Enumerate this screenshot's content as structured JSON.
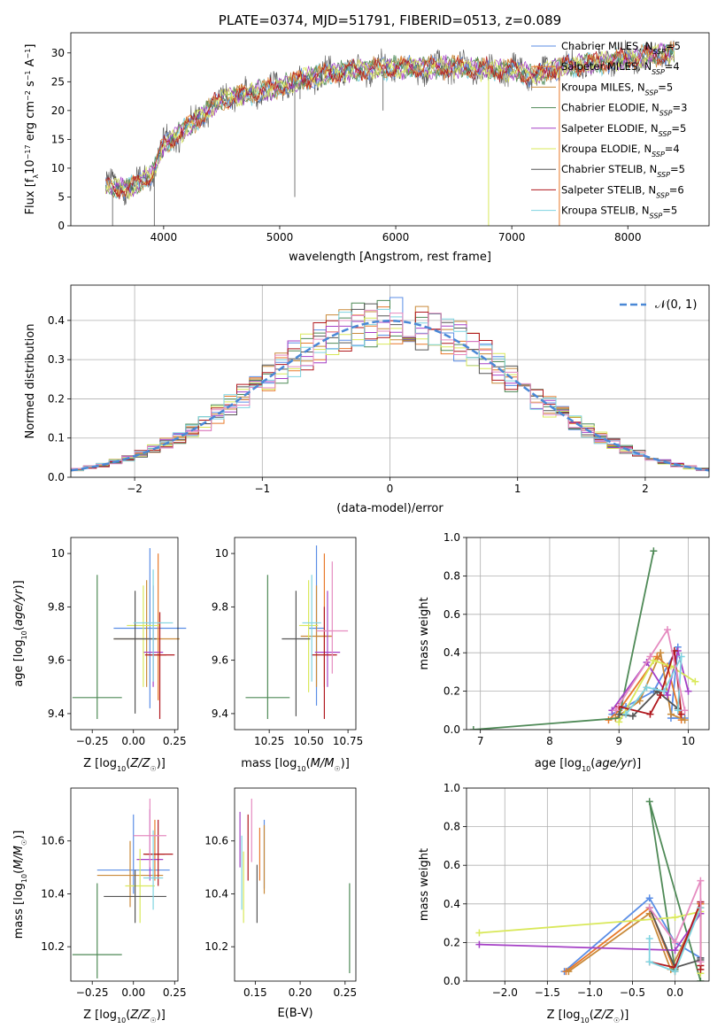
{
  "colors": [
    "#5b8ee6",
    "#e8792a",
    "#c98a3a",
    "#4f8a57",
    "#a540c6",
    "#d9e85a",
    "#555555",
    "#b0181e",
    "#7fd3e0",
    "#e58bc0"
  ],
  "chart_data": [
    {
      "type": "line",
      "title": "PLATE=0374, MJD=51791, FIBERID=0513, z=0.089",
      "xlabel": "wavelength [Angstrom, rest frame]",
      "ylabel": "Flux [f_λ 10^-17 erg cm^-2 s^-1 A^-1]",
      "xlim": [
        3200,
        8700
      ],
      "ylim": [
        0,
        33.5
      ],
      "xticks": [
        4000,
        5000,
        6000,
        7000,
        8000
      ],
      "yticks": [
        0,
        5,
        10,
        15,
        20,
        25,
        30
      ],
      "grid": false,
      "legend": "top-right",
      "continuum": {
        "x": [
          3500,
          3700,
          3900,
          4000,
          4200,
          4500,
          5000,
          5300,
          5600,
          6000,
          6500,
          7000,
          7200,
          7400,
          8000,
          8400
        ],
        "y": [
          7,
          6.5,
          9,
          14,
          17,
          22,
          24,
          26,
          27,
          27.5,
          27.5,
          27,
          26,
          27.5,
          29,
          30
        ]
      },
      "series": [
        {
          "name": "Chabrier MILES, N_SSP=5"
        },
        {
          "name": "Salpeter MILES, N_SSP=4"
        },
        {
          "name": "Kroupa MILES, N_SSP=5"
        },
        {
          "name": "Chabrier ELODIE, N_SSP=3"
        },
        {
          "name": "Salpeter ELODIE, N_SSP=5"
        },
        {
          "name": "Kroupa ELODIE, N_SSP=4"
        },
        {
          "name": "Chabrier STELIB, N_SSP=5"
        },
        {
          "name": "Salpeter STELIB, N_SSP=6"
        },
        {
          "name": "Kroupa STELIB, N_SSP=5"
        }
      ]
    },
    {
      "type": "histogram",
      "xlabel": "(data-model)/error",
      "ylabel": "Normed distribution",
      "xlim": [
        -2.5,
        2.5
      ],
      "ylim": [
        0,
        0.49
      ],
      "xticks": [
        -2,
        -1,
        0,
        1,
        2
      ],
      "yticks": [
        0.0,
        0.1,
        0.2,
        0.3,
        0.4
      ],
      "grid": true,
      "legend": "top-right",
      "legend_label": "𝒩(0, 1)",
      "bin_width": 0.1
    },
    {
      "type": "errorbar",
      "xlabel": "Z [log10(Z/Z☉)]",
      "ylabel": "age [log10(age/yr)]",
      "xlim": [
        -0.38,
        0.27
      ],
      "ylim": [
        9.34,
        10.06
      ],
      "xticks": [
        -0.25,
        0.0,
        0.25
      ],
      "xticklabels": [
        "−0.25",
        "0.00",
        "0.25"
      ],
      "yticks": [
        9.4,
        9.6,
        9.8,
        10.0
      ],
      "points": [
        {
          "x": 0.1,
          "y": 9.72,
          "xerr": 0.22,
          "ylo": 9.42,
          "yhi": 10.02
        },
        {
          "x": 0.15,
          "y": 9.62,
          "xerr": 0.05,
          "ylo": 9.45,
          "yhi": 10.0
        },
        {
          "x": 0.08,
          "y": 9.68,
          "xerr": 0.2,
          "ylo": 9.5,
          "yhi": 9.9
        },
        {
          "x": -0.22,
          "y": 9.46,
          "xerr": 0.15,
          "ylo": 9.38,
          "yhi": 9.92
        },
        {
          "x": 0.12,
          "y": 9.63,
          "xerr": 0.06,
          "ylo": 9.5,
          "yhi": 9.88
        },
        {
          "x": 0.06,
          "y": 9.73,
          "xerr": 0.1,
          "ylo": 9.5,
          "yhi": 9.88
        },
        {
          "x": 0.01,
          "y": 9.68,
          "xerr": 0.13,
          "ylo": 9.4,
          "yhi": 9.86
        },
        {
          "x": 0.16,
          "y": 9.62,
          "xerr": 0.09,
          "ylo": 9.38,
          "yhi": 9.78
        },
        {
          "x": 0.12,
          "y": 9.74,
          "xerr": 0.12,
          "ylo": 9.52,
          "yhi": 9.94
        }
      ]
    },
    {
      "type": "errorbar",
      "xlabel": "mass [log10(M/M☉)]",
      "ylabel": "",
      "xlim": [
        10.03,
        10.8
      ],
      "ylim": [
        9.34,
        10.06
      ],
      "xticks": [
        10.25,
        10.5,
        10.75
      ],
      "xticklabels": [
        "10.25",
        "10.50",
        "10.75"
      ],
      "yticks": [
        9.4,
        9.6,
        9.8,
        10.0
      ],
      "points": [
        {
          "x": 10.55,
          "y": 9.72,
          "xerr": 0.05,
          "ylo": 9.43,
          "yhi": 10.03
        },
        {
          "x": 10.6,
          "y": 9.69,
          "xerr": 0.05,
          "ylo": 9.5,
          "yhi": 10.0
        },
        {
          "x": 10.55,
          "y": 9.69,
          "xerr": 0.1,
          "ylo": 9.5,
          "yhi": 9.88
        },
        {
          "x": 10.24,
          "y": 9.46,
          "xerr": 0.14,
          "ylo": 9.38,
          "yhi": 9.92
        },
        {
          "x": 10.62,
          "y": 9.63,
          "xerr": 0.08,
          "ylo": 9.5,
          "yhi": 9.86
        },
        {
          "x": 10.5,
          "y": 9.73,
          "xerr": 0.06,
          "ylo": 9.48,
          "yhi": 9.9
        },
        {
          "x": 10.42,
          "y": 9.68,
          "xerr": 0.09,
          "ylo": 9.39,
          "yhi": 9.86
        },
        {
          "x": 10.6,
          "y": 9.62,
          "xerr": 0.08,
          "ylo": 9.38,
          "yhi": 9.8
        },
        {
          "x": 10.52,
          "y": 9.74,
          "xerr": 0.06,
          "ylo": 9.52,
          "yhi": 9.92
        },
        {
          "x": 10.65,
          "y": 9.71,
          "xerr": 0.1,
          "ylo": 9.55,
          "yhi": 9.97
        }
      ]
    },
    {
      "type": "line",
      "xlabel": "age [log10(age/yr)]",
      "ylabel": "mass weight",
      "xlim": [
        6.8,
        10.3
      ],
      "ylim": [
        0,
        1.0
      ],
      "xticks": [
        7,
        8,
        9,
        10
      ],
      "yticks": [
        0.0,
        0.2,
        0.4,
        0.6,
        0.8,
        1.0
      ],
      "grid": true,
      "series": [
        {
          "x": [
            8.9,
            9.1,
            9.5,
            9.85,
            9.75,
            9.95
          ],
          "y": [
            0.08,
            0.12,
            0.2,
            0.43,
            0.06,
            0.06
          ]
        },
        {
          "x": [
            8.85,
            9.0,
            9.55,
            9.7,
            9.9
          ],
          "y": [
            0.05,
            0.1,
            0.38,
            0.33,
            0.05
          ]
        },
        {
          "x": [
            8.95,
            9.3,
            9.6,
            9.75,
            9.95
          ],
          "y": [
            0.06,
            0.15,
            0.4,
            0.08,
            0.05
          ]
        },
        {
          "x": [
            6.9,
            9.0,
            9.5
          ],
          "y": [
            0.0,
            0.06,
            0.93
          ]
        },
        {
          "x": [
            8.9,
            9.4,
            9.7,
            9.85,
            10.0
          ],
          "y": [
            0.1,
            0.35,
            0.18,
            0.41,
            0.2
          ]
        },
        {
          "x": [
            9.0,
            9.5,
            9.75,
            10.1
          ],
          "y": [
            0.04,
            0.36,
            0.33,
            0.25
          ]
        },
        {
          "x": [
            9.0,
            9.2,
            9.55,
            9.85
          ],
          "y": [
            0.08,
            0.07,
            0.2,
            0.11
          ]
        },
        {
          "x": [
            9.0,
            9.45,
            9.6,
            9.8,
            9.9
          ],
          "y": [
            0.12,
            0.08,
            0.18,
            0.41,
            0.08
          ]
        },
        {
          "x": [
            9.1,
            9.4,
            9.65,
            9.9,
            9.85
          ],
          "y": [
            0.08,
            0.22,
            0.2,
            0.38,
            0.1
          ]
        },
        {
          "x": [
            8.95,
            9.45,
            9.7,
            9.95
          ],
          "y": [
            0.1,
            0.38,
            0.52,
            0.1
          ]
        }
      ]
    },
    {
      "type": "errorbar",
      "xlabel": "Z [log10(Z/Z☉)]",
      "ylabel": "mass [log10(M/M☉)]",
      "xlim": [
        -0.38,
        0.27
      ],
      "ylim": [
        10.07,
        10.8
      ],
      "xticks": [
        -0.25,
        0.0,
        0.25
      ],
      "xticklabels": [
        "−0.25",
        "0.00",
        "0.25"
      ],
      "yticks": [
        10.2,
        10.4,
        10.6
      ],
      "points": [
        {
          "x": 0.0,
          "y": 10.49,
          "xerr": 0.22,
          "ylo": 10.4,
          "yhi": 10.7
        },
        {
          "x": 0.13,
          "y": 10.55,
          "xerr": 0.06,
          "ylo": 10.45,
          "yhi": 10.68
        },
        {
          "x": -0.02,
          "y": 10.47,
          "xerr": 0.2,
          "ylo": 10.35,
          "yhi": 10.6
        },
        {
          "x": -0.22,
          "y": 10.17,
          "xerr": 0.15,
          "ylo": 10.08,
          "yhi": 10.44
        },
        {
          "x": 0.1,
          "y": 10.53,
          "xerr": 0.08,
          "ylo": 10.45,
          "yhi": 10.72
        },
        {
          "x": 0.04,
          "y": 10.43,
          "xerr": 0.09,
          "ylo": 10.29,
          "yhi": 10.57
        },
        {
          "x": 0.01,
          "y": 10.39,
          "xerr": 0.19,
          "ylo": 10.29,
          "yhi": 10.49
        },
        {
          "x": 0.15,
          "y": 10.55,
          "xerr": 0.09,
          "ylo": 10.43,
          "yhi": 10.68
        },
        {
          "x": 0.12,
          "y": 10.46,
          "xerr": 0.06,
          "ylo": 10.34,
          "yhi": 10.64
        },
        {
          "x": 0.1,
          "y": 10.62,
          "xerr": 0.1,
          "ylo": 10.5,
          "yhi": 10.76
        }
      ]
    },
    {
      "type": "errorbar",
      "xlabel": "E(B-V)",
      "ylabel": "",
      "xlim": [
        0.127,
        0.262
      ],
      "ylim": [
        10.07,
        10.8
      ],
      "xticks": [
        0.15,
        0.2,
        0.25
      ],
      "xticklabels": [
        "0.15",
        "0.20",
        "0.25"
      ],
      "yticks": [
        10.2,
        10.4,
        10.6
      ],
      "points": [
        {
          "x": 0.16,
          "y": 10.55,
          "ylo": 10.42,
          "yhi": 10.68
        },
        {
          "x": 0.155,
          "y": 10.55,
          "ylo": 10.45,
          "yhi": 10.65
        },
        {
          "x": 0.16,
          "y": 10.5,
          "ylo": 10.4,
          "yhi": 10.66
        },
        {
          "x": 0.255,
          "y": 10.25,
          "ylo": 10.1,
          "yhi": 10.44
        },
        {
          "x": 0.133,
          "y": 10.6,
          "ylo": 10.5,
          "yhi": 10.71
        },
        {
          "x": 0.137,
          "y": 10.4,
          "ylo": 10.29,
          "yhi": 10.56
        },
        {
          "x": 0.152,
          "y": 10.4,
          "ylo": 10.29,
          "yhi": 10.51
        },
        {
          "x": 0.142,
          "y": 10.55,
          "ylo": 10.45,
          "yhi": 10.7
        },
        {
          "x": 0.135,
          "y": 10.45,
          "ylo": 10.34,
          "yhi": 10.62
        },
        {
          "x": 0.146,
          "y": 10.65,
          "ylo": 10.52,
          "yhi": 10.76
        }
      ]
    },
    {
      "type": "line",
      "xlabel": "Z [log10(Z/Z☉)]",
      "ylabel": "mass weight",
      "xlim": [
        -2.45,
        0.4
      ],
      "ylim": [
        0,
        1.0
      ],
      "xticks": [
        -2.0,
        -1.5,
        -1.0,
        -0.5,
        0.0
      ],
      "xticklabels": [
        "−2.0",
        "−1.5",
        "−1.0",
        "−0.5",
        "0.0"
      ],
      "yticks": [
        0.0,
        0.2,
        0.4,
        0.6,
        0.8,
        1.0
      ],
      "grid": true,
      "series": [
        {
          "x": [
            -1.3,
            -0.3,
            0.0,
            0.3,
            0.3
          ],
          "y": [
            0.05,
            0.43,
            0.2,
            0.12,
            0.1
          ]
        },
        {
          "x": [
            -1.28,
            -0.3,
            0.0,
            0.3
          ],
          "y": [
            0.05,
            0.38,
            0.05,
            0.4
          ]
        },
        {
          "x": [
            -1.25,
            -0.3,
            -0.05,
            0.3
          ],
          "y": [
            0.05,
            0.35,
            0.06,
            0.38
          ]
        },
        {
          "x": [
            0.3,
            -0.3,
            0.0
          ],
          "y": [
            0.0,
            0.93,
            0.06
          ]
        },
        {
          "x": [
            -2.3,
            0.0,
            0.3,
            0.3
          ],
          "y": [
            0.19,
            0.16,
            0.35,
            0.41
          ]
        },
        {
          "x": [
            -2.3,
            0.0,
            0.3,
            0.3
          ],
          "y": [
            0.25,
            0.33,
            0.36,
            0.04
          ]
        },
        {
          "x": [
            -0.3,
            0.0,
            0.3,
            0.3
          ],
          "y": [
            0.38,
            0.07,
            0.11,
            0.12
          ]
        },
        {
          "x": [
            -0.3,
            0.0,
            0.3,
            0.3,
            0.3
          ],
          "y": [
            0.1,
            0.07,
            0.41,
            0.08,
            0.06
          ]
        },
        {
          "x": [
            -0.3,
            -0.3,
            0.0,
            0.3
          ],
          "y": [
            0.22,
            0.1,
            0.05,
            0.38
          ]
        },
        {
          "x": [
            -0.3,
            0.0,
            0.3,
            0.3
          ],
          "y": [
            0.38,
            0.2,
            0.52,
            0.1
          ]
        }
      ]
    }
  ]
}
